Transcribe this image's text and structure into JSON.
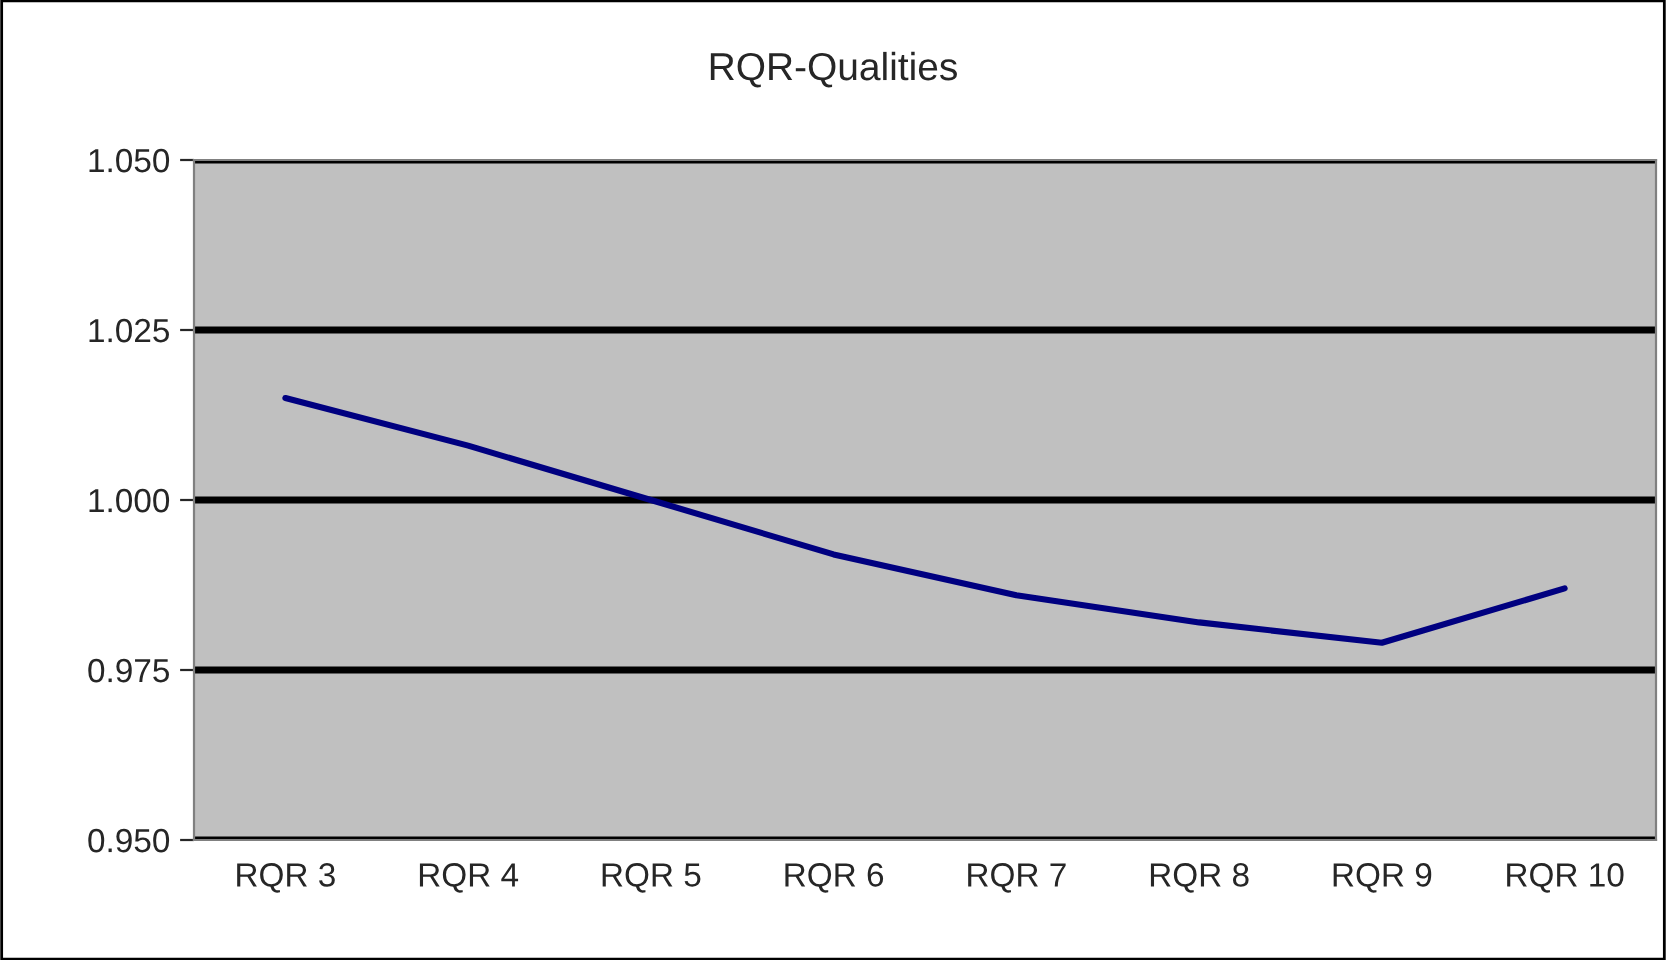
{
  "chart_data": {
    "type": "line",
    "title": "RQR-Qualities",
    "categories": [
      "RQR 3",
      "RQR 4",
      "RQR 5",
      "RQR 6",
      "RQR 7",
      "RQR 8",
      "RQR 9",
      "RQR 10"
    ],
    "series": [
      {
        "color": "#000080",
        "values": [
          1.015,
          1.008,
          1.0,
          0.992,
          0.986,
          0.982,
          0.979,
          0.987
        ]
      }
    ],
    "ylim": [
      0.95,
      1.05
    ],
    "yticks": [
      {
        "value": 0.95,
        "label": "0.950"
      },
      {
        "value": 0.975,
        "label": "0.975"
      },
      {
        "value": 1.0,
        "label": "1.000"
      },
      {
        "value": 1.025,
        "label": "1.025"
      },
      {
        "value": 1.05,
        "label": "1.050"
      }
    ],
    "grid": "y",
    "legend": false
  }
}
